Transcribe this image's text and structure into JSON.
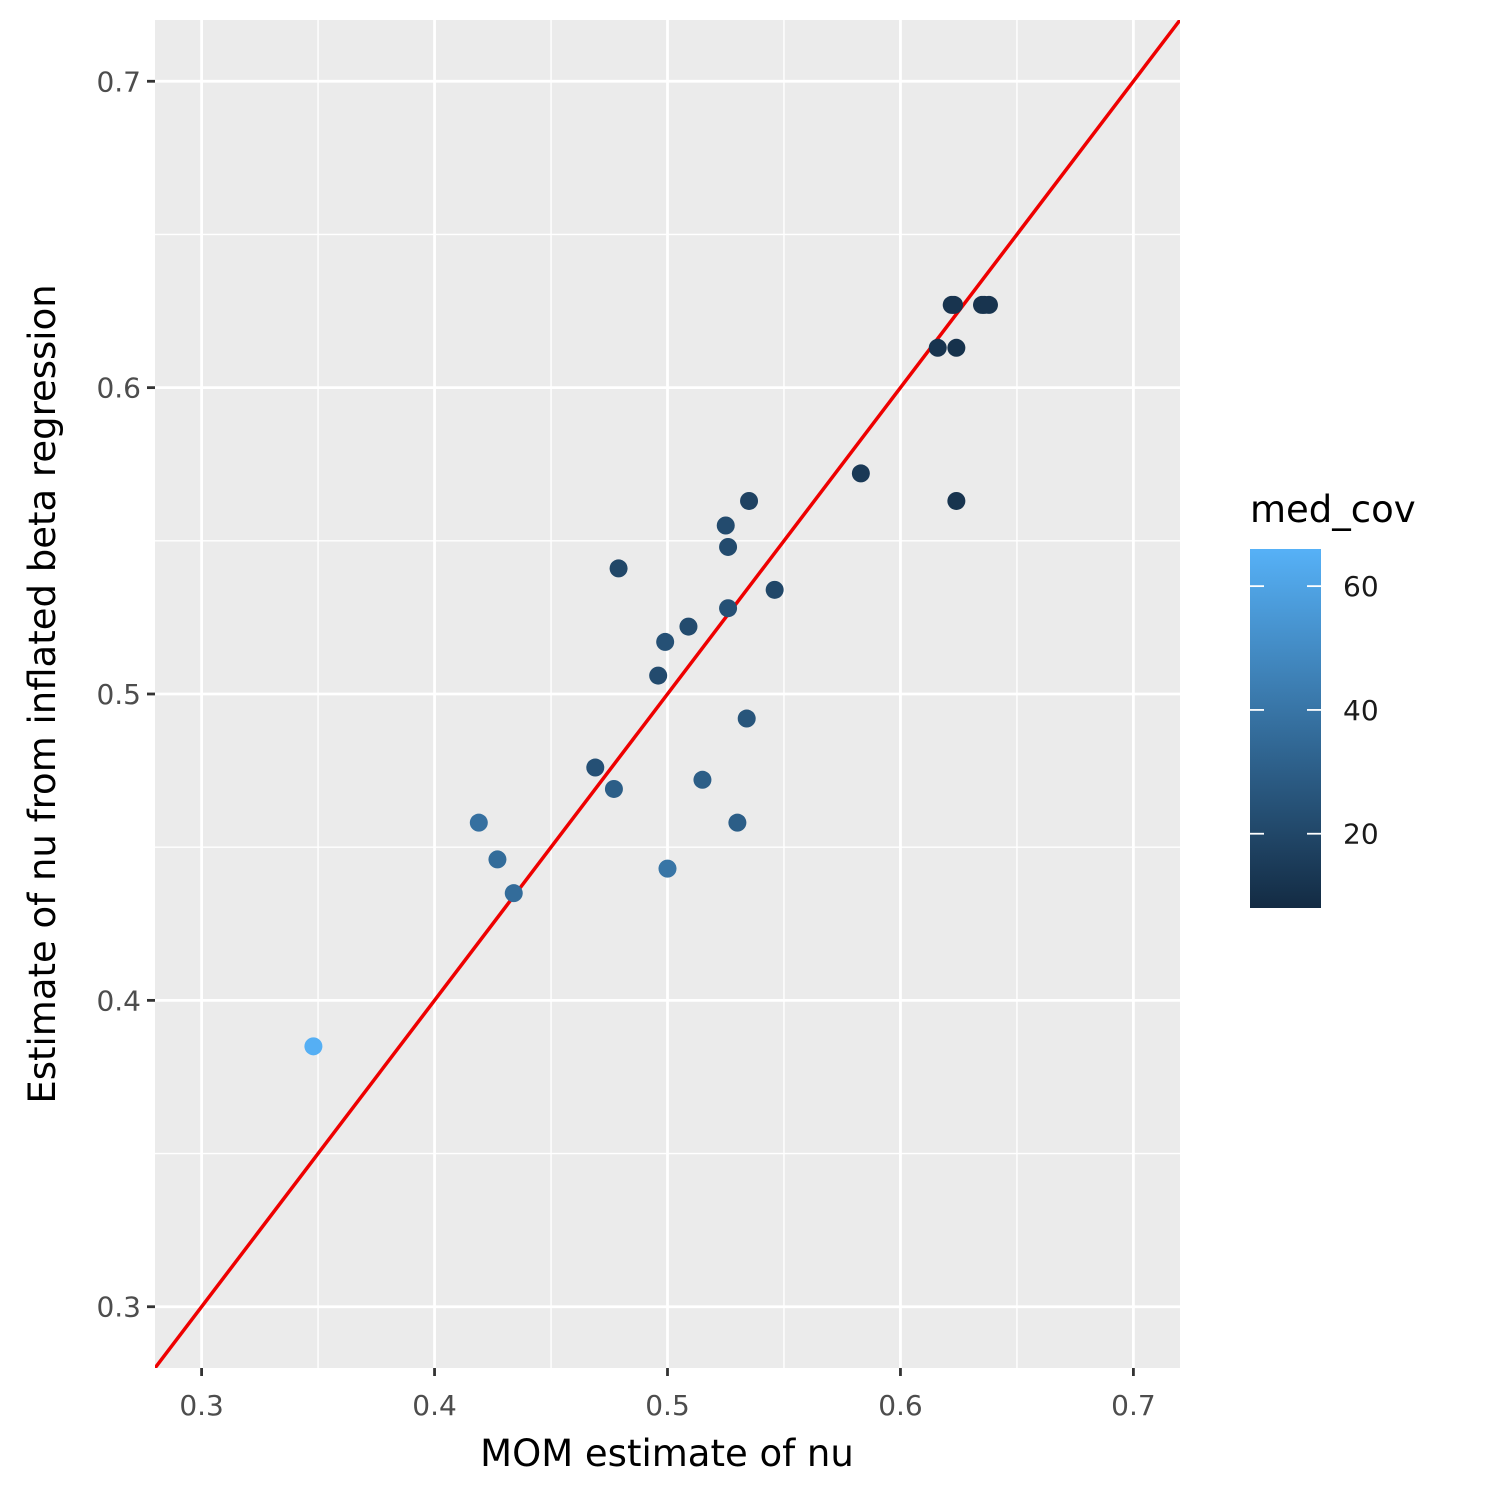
{
  "chart_data": {
    "type": "scatter",
    "xlabel": "MOM estimate of nu",
    "ylabel": "Estimate of nu from inflated beta regression",
    "xlim": [
      0.28,
      0.72
    ],
    "ylim": [
      0.28,
      0.72
    ],
    "x_ticks": [
      "0.3",
      "0.4",
      "0.5",
      "0.6",
      "0.7"
    ],
    "y_ticks": [
      "0.3",
      "0.4",
      "0.5",
      "0.6",
      "0.7"
    ],
    "grid": true,
    "reference_line": {
      "slope": 1,
      "intercept": 0,
      "color": "#ee0000"
    },
    "color_legend": {
      "title": "med_cov",
      "position": "right",
      "range": [
        8,
        66
      ],
      "ticks": [
        "20",
        "40",
        "60"
      ],
      "color_low": "#132b43",
      "color_high": "#56b1f7"
    },
    "points": [
      {
        "x": 0.348,
        "y": 0.385,
        "med_cov": 65
      },
      {
        "x": 0.419,
        "y": 0.458,
        "med_cov": 38
      },
      {
        "x": 0.427,
        "y": 0.446,
        "med_cov": 36
      },
      {
        "x": 0.434,
        "y": 0.435,
        "med_cov": 36
      },
      {
        "x": 0.469,
        "y": 0.476,
        "med_cov": 24
      },
      {
        "x": 0.477,
        "y": 0.469,
        "med_cov": 30
      },
      {
        "x": 0.479,
        "y": 0.541,
        "med_cov": 20
      },
      {
        "x": 0.496,
        "y": 0.506,
        "med_cov": 22
      },
      {
        "x": 0.499,
        "y": 0.517,
        "med_cov": 24
      },
      {
        "x": 0.5,
        "y": 0.443,
        "med_cov": 40
      },
      {
        "x": 0.509,
        "y": 0.522,
        "med_cov": 22
      },
      {
        "x": 0.515,
        "y": 0.472,
        "med_cov": 30
      },
      {
        "x": 0.525,
        "y": 0.555,
        "med_cov": 22
      },
      {
        "x": 0.526,
        "y": 0.548,
        "med_cov": 22
      },
      {
        "x": 0.526,
        "y": 0.528,
        "med_cov": 24
      },
      {
        "x": 0.53,
        "y": 0.458,
        "med_cov": 30
      },
      {
        "x": 0.534,
        "y": 0.492,
        "med_cov": 26
      },
      {
        "x": 0.535,
        "y": 0.563,
        "med_cov": 18
      },
      {
        "x": 0.546,
        "y": 0.534,
        "med_cov": 20
      },
      {
        "x": 0.583,
        "y": 0.572,
        "med_cov": 14
      },
      {
        "x": 0.616,
        "y": 0.613,
        "med_cov": 12
      },
      {
        "x": 0.622,
        "y": 0.627,
        "med_cov": 12
      },
      {
        "x": 0.623,
        "y": 0.627,
        "med_cov": 12
      },
      {
        "x": 0.624,
        "y": 0.613,
        "med_cov": 11
      },
      {
        "x": 0.624,
        "y": 0.563,
        "med_cov": 12
      },
      {
        "x": 0.635,
        "y": 0.627,
        "med_cov": 12
      },
      {
        "x": 0.636,
        "y": 0.627,
        "med_cov": 12
      },
      {
        "x": 0.638,
        "y": 0.627,
        "med_cov": 12
      }
    ]
  }
}
